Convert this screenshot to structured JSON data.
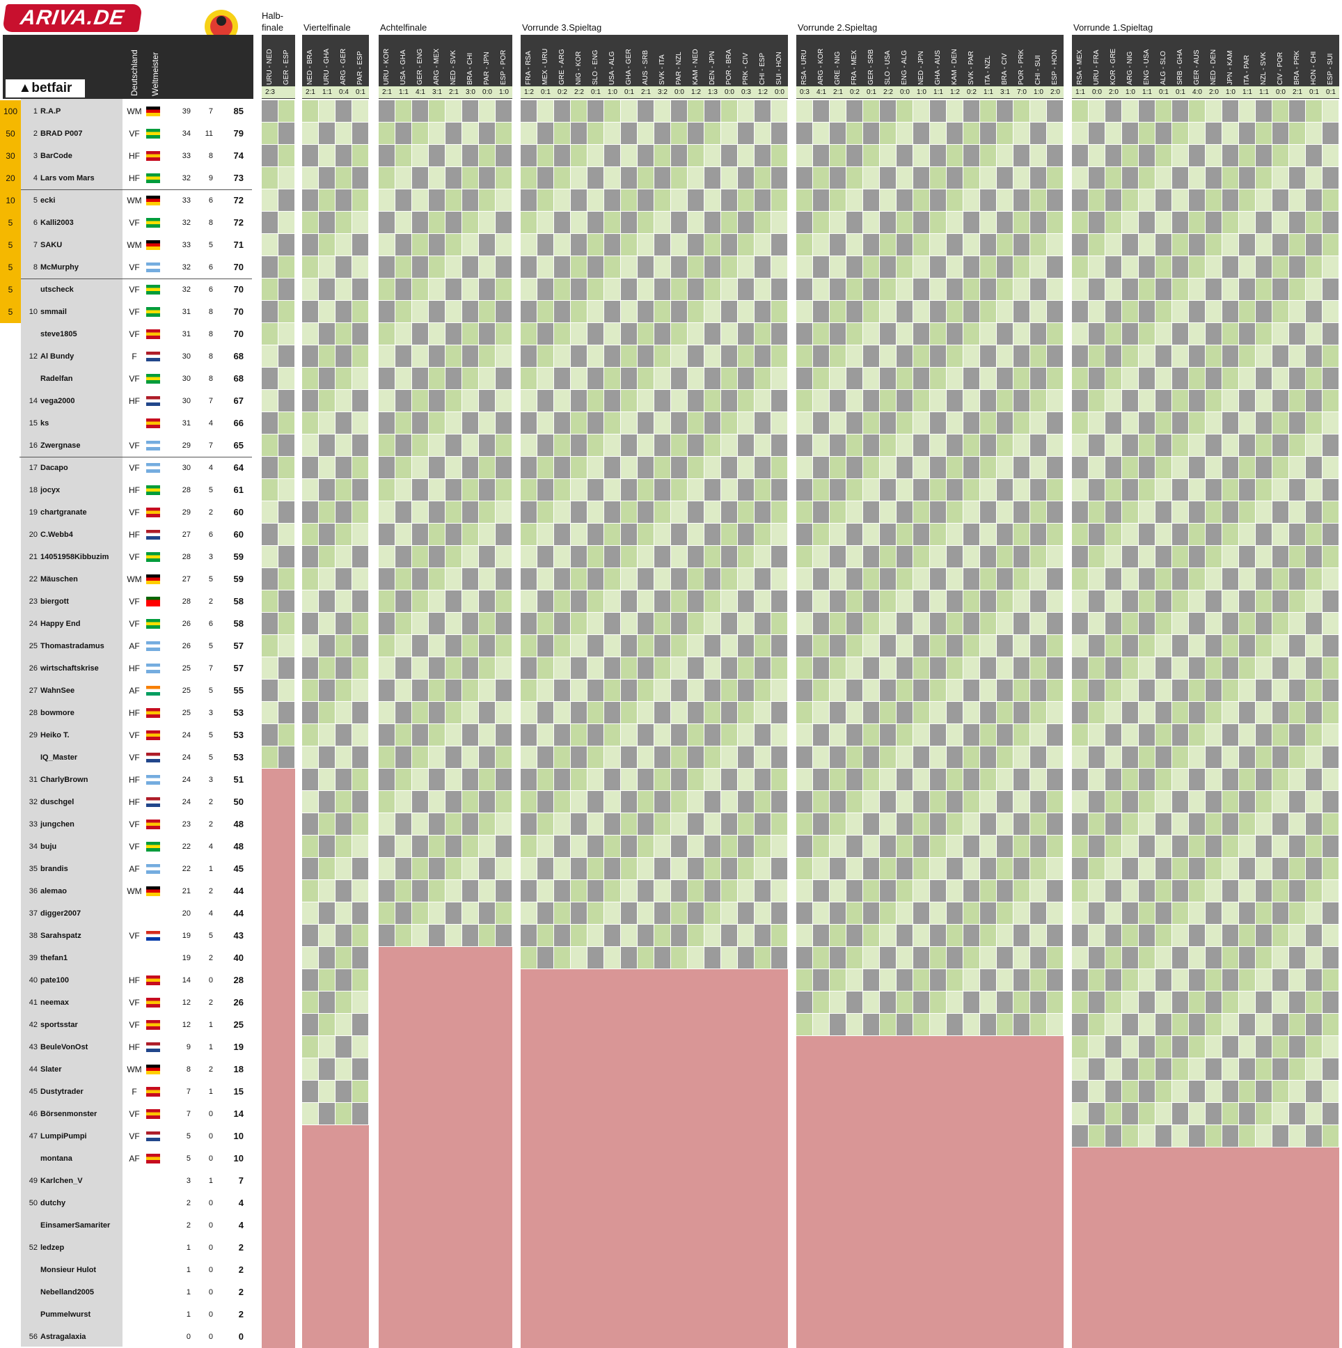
{
  "brand": "ARIVA.DE",
  "sponsor": "betfair",
  "col_headers": {
    "germany": "Deutschland",
    "champion": "Weltmeister"
  },
  "sections": [
    "Halb-finale",
    "Viertelfinale",
    "Achtelfinale",
    "Vorrunde 3.Spieltag",
    "Vorrunde 2.Spieltag",
    "Vorrunde 1.Spieltag"
  ],
  "halbfinale": {
    "matches": [
      "URU - NED",
      "GER - ESP"
    ],
    "results": [
      "2:3",
      ""
    ]
  },
  "viertelfinale": {
    "matches": [
      "NED - BRA",
      "URU - GHA",
      "ARG - GER",
      "PAR - ESP"
    ],
    "results": [
      "2:1",
      "1:1",
      "0:4",
      "0:1"
    ]
  },
  "achtelfinale": {
    "matches": [
      "URU - KOR",
      "USA - GHA",
      "GER - ENG",
      "ARG - MEX",
      "NED - SVK",
      "BRA - CHI",
      "PAR - JPN",
      "ESP - POR"
    ],
    "results": [
      "2:1",
      "1:1",
      "4:1",
      "3:1",
      "2:1",
      "3:0",
      "0:0",
      "1:0"
    ]
  },
  "vorrunde3": {
    "matches": [
      "FRA - RSA",
      "MEX - URU",
      "GRE - ARG",
      "NIG - KOR",
      "SLO - ENG",
      "USA - ALG",
      "GHA - GER",
      "AUS - SRB",
      "SVK - ITA",
      "PAR - NZL",
      "KAM - NED",
      "DEN - JPN",
      "POR - BRA",
      "PRK - CIV",
      "CHI - ESP",
      "SUI - HON"
    ],
    "results": [
      "1:2",
      "0:1",
      "0:2",
      "2:2",
      "0:1",
      "1:0",
      "0:1",
      "2:1",
      "3:2",
      "0:0",
      "1:2",
      "1:3",
      "0:0",
      "0:3",
      "1:2",
      "0:0"
    ]
  },
  "vorrunde2": {
    "matches": [
      "RSA - URU",
      "ARG - KOR",
      "GRE - NIG",
      "FRA - MEX",
      "GER - SRB",
      "SLO - USA",
      "ENG - ALG",
      "NED - JPN",
      "GHA - AUS",
      "KAM - DEN",
      "SVK - PAR",
      "ITA - NZL",
      "BRA - CIV",
      "POR - PRK",
      "CHI - SUI",
      "ESP - HON"
    ],
    "results": [
      "0:3",
      "4:1",
      "2:1",
      "0:2",
      "0:1",
      "2:2",
      "0:0",
      "1:0",
      "1:1",
      "1:2",
      "0:2",
      "1:1",
      "3:1",
      "7:0",
      "1:0",
      "2:0"
    ]
  },
  "vorrunde1": {
    "matches": [
      "RSA - MEX",
      "URU - FRA",
      "KOR - GRE",
      "ARG - NIG",
      "ENG - USA",
      "ALG - SLO",
      "SRB - GHA",
      "GER - AUS",
      "NED - DEN",
      "JPN - KAM",
      "ITA - PAR",
      "NZL - SVK",
      "CIV - POR",
      "BRA - PRK",
      "HON - CHI",
      "ESP - SUI"
    ],
    "results": [
      "1:1",
      "0:0",
      "2:0",
      "1:0",
      "1:1",
      "0:1",
      "0:1",
      "4:0",
      "2:0",
      "1:0",
      "1:1",
      "1:1",
      "0:0",
      "2:1",
      "0:1",
      "0:1"
    ]
  },
  "players": [
    {
      "rank": "1",
      "name": "R.A.P",
      "tip": "WM",
      "flag": "ger",
      "a": "39",
      "b": "7",
      "points": "85",
      "prize": "100"
    },
    {
      "rank": "2",
      "name": "BRAD P007",
      "tip": "VF",
      "flag": "bra",
      "a": "34",
      "b": "11",
      "points": "79",
      "prize": "50"
    },
    {
      "rank": "3",
      "name": "BarCode",
      "tip": "HF",
      "flag": "esp",
      "a": "33",
      "b": "8",
      "points": "74",
      "prize": "30"
    },
    {
      "rank": "4",
      "name": "Lars vom Mars",
      "tip": "HF",
      "flag": "bra",
      "a": "32",
      "b": "9",
      "points": "73",
      "prize": "20"
    },
    {
      "rank": "5",
      "name": "ecki",
      "tip": "WM",
      "flag": "ger",
      "a": "33",
      "b": "6",
      "points": "72",
      "prize": "10"
    },
    {
      "rank": "6",
      "name": "Kalli2003",
      "tip": "VF",
      "flag": "bra",
      "a": "32",
      "b": "8",
      "points": "72",
      "prize": "5"
    },
    {
      "rank": "7",
      "name": "SAKU",
      "tip": "WM",
      "flag": "ger",
      "a": "33",
      "b": "5",
      "points": "71",
      "prize": "5"
    },
    {
      "rank": "8",
      "name": "McMurphy",
      "tip": "VF",
      "flag": "arg",
      "a": "32",
      "b": "6",
      "points": "70",
      "prize": "5"
    },
    {
      "rank": "",
      "name": "utscheck",
      "tip": "VF",
      "flag": "bra",
      "a": "32",
      "b": "6",
      "points": "70",
      "prize": "5"
    },
    {
      "rank": "10",
      "name": "smmail",
      "tip": "VF",
      "flag": "bra",
      "a": "31",
      "b": "8",
      "points": "70",
      "prize": "5"
    },
    {
      "rank": "",
      "name": "steve1805",
      "tip": "VF",
      "flag": "esp",
      "a": "31",
      "b": "8",
      "points": "70",
      "prize": ""
    },
    {
      "rank": "12",
      "name": "Al Bundy",
      "tip": "F",
      "flag": "ned",
      "a": "30",
      "b": "8",
      "points": "68",
      "prize": ""
    },
    {
      "rank": "",
      "name": "Radelfan",
      "tip": "VF",
      "flag": "bra",
      "a": "30",
      "b": "8",
      "points": "68",
      "prize": ""
    },
    {
      "rank": "14",
      "name": "vega2000",
      "tip": "HF",
      "flag": "ned",
      "a": "30",
      "b": "7",
      "points": "67",
      "prize": ""
    },
    {
      "rank": "15",
      "name": "ks",
      "tip": "",
      "flag": "esp",
      "a": "31",
      "b": "4",
      "points": "66",
      "prize": ""
    },
    {
      "rank": "16",
      "name": "Zwergnase",
      "tip": "VF",
      "flag": "arg",
      "a": "29",
      "b": "7",
      "points": "65",
      "prize": ""
    },
    {
      "rank": "17",
      "name": "Dacapo",
      "tip": "VF",
      "flag": "arg",
      "a": "30",
      "b": "4",
      "points": "64",
      "prize": ""
    },
    {
      "rank": "18",
      "name": "jocyx",
      "tip": "HF",
      "flag": "bra",
      "a": "28",
      "b": "5",
      "points": "61",
      "prize": ""
    },
    {
      "rank": "19",
      "name": "chartgranate",
      "tip": "VF",
      "flag": "esp",
      "a": "29",
      "b": "2",
      "points": "60",
      "prize": ""
    },
    {
      "rank": "20",
      "name": "C.Webb4",
      "tip": "HF",
      "flag": "ned",
      "a": "27",
      "b": "6",
      "points": "60",
      "prize": ""
    },
    {
      "rank": "21",
      "name": "14051958Kibbuzim",
      "tip": "VF",
      "flag": "bra",
      "a": "28",
      "b": "3",
      "points": "59",
      "prize": ""
    },
    {
      "rank": "22",
      "name": "Mäuschen",
      "tip": "WM",
      "flag": "ger",
      "a": "27",
      "b": "5",
      "points": "59",
      "prize": ""
    },
    {
      "rank": "23",
      "name": "biergott",
      "tip": "VF",
      "flag": "por",
      "a": "28",
      "b": "2",
      "points": "58",
      "prize": ""
    },
    {
      "rank": "24",
      "name": "Happy End",
      "tip": "VF",
      "flag": "bra",
      "a": "26",
      "b": "6",
      "points": "58",
      "prize": ""
    },
    {
      "rank": "25",
      "name": "Thomastradamus",
      "tip": "AF",
      "flag": "arg",
      "a": "26",
      "b": "5",
      "points": "57",
      "prize": ""
    },
    {
      "rank": "26",
      "name": "wirtschaftskrise",
      "tip": "HF",
      "flag": "arg",
      "a": "25",
      "b": "7",
      "points": "57",
      "prize": ""
    },
    {
      "rank": "27",
      "name": "WahnSee",
      "tip": "AF",
      "flag": "civ",
      "a": "25",
      "b": "5",
      "points": "55",
      "prize": ""
    },
    {
      "rank": "28",
      "name": "bowmore",
      "tip": "HF",
      "flag": "esp",
      "a": "25",
      "b": "3",
      "points": "53",
      "prize": ""
    },
    {
      "rank": "29",
      "name": "Heiko T.",
      "tip": "VF",
      "flag": "esp",
      "a": "24",
      "b": "5",
      "points": "53",
      "prize": ""
    },
    {
      "rank": "",
      "name": "IQ_Master",
      "tip": "VF",
      "flag": "ned",
      "a": "24",
      "b": "5",
      "points": "53",
      "prize": ""
    },
    {
      "rank": "31",
      "name": "CharlyBrown",
      "tip": "HF",
      "flag": "arg",
      "a": "24",
      "b": "3",
      "points": "51",
      "prize": ""
    },
    {
      "rank": "32",
      "name": "duschgel",
      "tip": "HF",
      "flag": "ned",
      "a": "24",
      "b": "2",
      "points": "50",
      "prize": ""
    },
    {
      "rank": "33",
      "name": "jungchen",
      "tip": "VF",
      "flag": "esp",
      "a": "23",
      "b": "2",
      "points": "48",
      "prize": ""
    },
    {
      "rank": "34",
      "name": "buju",
      "tip": "VF",
      "flag": "bra",
      "a": "22",
      "b": "4",
      "points": "48",
      "prize": ""
    },
    {
      "rank": "35",
      "name": "brandis",
      "tip": "AF",
      "flag": "arg",
      "a": "22",
      "b": "1",
      "points": "45",
      "prize": ""
    },
    {
      "rank": "36",
      "name": "alemao",
      "tip": "WM",
      "flag": "ger",
      "a": "21",
      "b": "2",
      "points": "44",
      "prize": ""
    },
    {
      "rank": "37",
      "name": "digger2007",
      "tip": "",
      "flag": "",
      "a": "20",
      "b": "4",
      "points": "44",
      "prize": ""
    },
    {
      "rank": "38",
      "name": "Sarahspatz",
      "tip": "VF",
      "flag": "par",
      "a": "19",
      "b": "5",
      "points": "43",
      "prize": ""
    },
    {
      "rank": "39",
      "name": "thefan1",
      "tip": "",
      "flag": "",
      "a": "19",
      "b": "2",
      "points": "40",
      "prize": ""
    },
    {
      "rank": "40",
      "name": "pate100",
      "tip": "HF",
      "flag": "esp",
      "a": "14",
      "b": "0",
      "points": "28",
      "prize": ""
    },
    {
      "rank": "41",
      "name": "neemax",
      "tip": "VF",
      "flag": "esp",
      "a": "12",
      "b": "2",
      "points": "26",
      "prize": ""
    },
    {
      "rank": "42",
      "name": "sportsstar",
      "tip": "VF",
      "flag": "esp",
      "a": "12",
      "b": "1",
      "points": "25",
      "prize": ""
    },
    {
      "rank": "43",
      "name": "BeuleVonOst",
      "tip": "HF",
      "flag": "ned",
      "a": "9",
      "b": "1",
      "points": "19",
      "prize": ""
    },
    {
      "rank": "44",
      "name": "Slater",
      "tip": "WM",
      "flag": "ger",
      "a": "8",
      "b": "2",
      "points": "18",
      "prize": ""
    },
    {
      "rank": "45",
      "name": "Dustytrader",
      "tip": "F",
      "flag": "esp",
      "a": "7",
      "b": "1",
      "points": "15",
      "prize": ""
    },
    {
      "rank": "46",
      "name": "Börsenmonster",
      "tip": "VF",
      "flag": "esp",
      "a": "7",
      "b": "0",
      "points": "14",
      "prize": ""
    },
    {
      "rank": "47",
      "name": "LumpiPumpi",
      "tip": "VF",
      "flag": "ned",
      "a": "5",
      "b": "0",
      "points": "10",
      "prize": ""
    },
    {
      "rank": "",
      "name": "montana",
      "tip": "AF",
      "flag": "esp",
      "a": "5",
      "b": "0",
      "points": "10",
      "prize": ""
    },
    {
      "rank": "49",
      "name": "Karlchen_V",
      "tip": "",
      "flag": "",
      "a": "3",
      "b": "1",
      "points": "7",
      "prize": ""
    },
    {
      "rank": "50",
      "name": "dutchy",
      "tip": "",
      "flag": "",
      "a": "2",
      "b": "0",
      "points": "4",
      "prize": ""
    },
    {
      "rank": "",
      "name": "EinsamerSamariter",
      "tip": "",
      "flag": "",
      "a": "2",
      "b": "0",
      "points": "4",
      "prize": ""
    },
    {
      "rank": "52",
      "name": "ledzep",
      "tip": "",
      "flag": "",
      "a": "1",
      "b": "0",
      "points": "2",
      "prize": ""
    },
    {
      "rank": "",
      "name": "Monsieur Hulot",
      "tip": "",
      "flag": "",
      "a": "1",
      "b": "0",
      "points": "2",
      "prize": ""
    },
    {
      "rank": "",
      "name": "Nebelland2005",
      "tip": "",
      "flag": "",
      "a": "1",
      "b": "0",
      "points": "2",
      "prize": ""
    },
    {
      "rank": "",
      "name": "Pummelwurst",
      "tip": "",
      "flag": "",
      "a": "1",
      "b": "0",
      "points": "2",
      "prize": ""
    },
    {
      "rank": "56",
      "name": "Astragalaxia",
      "tip": "",
      "flag": "",
      "a": "0",
      "b": "0",
      "points": "0",
      "prize": ""
    }
  ],
  "colors": {
    "hit": "#ddebc6",
    "exact": "#c4dba2",
    "miss": "#9b9b9b",
    "missing": "#d99696",
    "prize": "#f5b800",
    "header": "#3a3a3a"
  }
}
